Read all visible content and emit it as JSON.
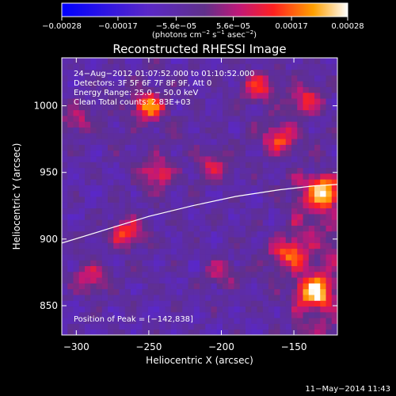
{
  "chart_data": {
    "type": "heatmap",
    "title": "Reconstructed RHESSI Image",
    "xlabel": "Heliocentric X (arcsec)",
    "ylabel": "Heliocentric Y (arcsec)",
    "xlim": [
      -310,
      -120
    ],
    "ylim": [
      828,
      1036
    ],
    "xticks": [
      -300,
      -250,
      -200,
      -150
    ],
    "yticks": [
      850,
      900,
      950,
      1000
    ],
    "xtick_labels": [
      "−300",
      "−250",
      "−200",
      "−150"
    ],
    "ytick_labels": [
      "850",
      "900",
      "950",
      "1000"
    ],
    "colorbar": {
      "range": [
        -0.00028,
        0.00028
      ],
      "ticks": [
        -0.00028,
        -0.00017,
        -5.6e-05,
        5.6e-05,
        0.00017,
        0.00028
      ],
      "tick_labels": [
        "−0.00028",
        "−0.00017",
        "−5.6e−05",
        "5.6e−05",
        "0.00017",
        "0.00028"
      ],
      "unit_label_prefix": "(photons cm",
      "unit_exp1": "−2",
      "unit_mid": " s",
      "unit_exp2": "−1",
      "unit_mid2": " asec",
      "unit_exp3": "−2",
      "unit_suffix": ")"
    },
    "limb_curve": [
      [
        -310,
        897
      ],
      [
        -280,
        907
      ],
      [
        -250,
        917
      ],
      [
        -220,
        925
      ],
      [
        -190,
        932
      ],
      [
        -160,
        937
      ],
      [
        -135,
        940
      ],
      [
        -120,
        941
      ]
    ],
    "hotspots": [
      {
        "x": -250,
        "y": 1000,
        "value": 0.00026
      },
      {
        "x": -245,
        "y": 950,
        "value": 0.00018
      },
      {
        "x": -265,
        "y": 905,
        "value": 0.0002
      },
      {
        "x": -290,
        "y": 870,
        "value": 0.00016
      },
      {
        "x": -175,
        "y": 1015,
        "value": 0.00018
      },
      {
        "x": -160,
        "y": 975,
        "value": 0.0002
      },
      {
        "x": -140,
        "y": 1005,
        "value": 0.00017
      },
      {
        "x": -130,
        "y": 935,
        "value": 0.00028
      },
      {
        "x": -135,
        "y": 860,
        "value": 0.00028
      },
      {
        "x": -155,
        "y": 890,
        "value": 0.00022
      },
      {
        "x": -205,
        "y": 955,
        "value": 0.00014
      },
      {
        "x": -200,
        "y": 875,
        "value": 0.00012
      },
      {
        "x": -300,
        "y": 990,
        "value": 0.00013
      }
    ]
  },
  "annotations": {
    "time_range": "24−Aug−2012 01:07:52.000 to 01:10:52.000",
    "detectors": "Detectors: 3F 5F 6F 7F 8F 9F, Att 0",
    "energy_range": "Energy Range: 25.0 − 50.0 keV",
    "method_counts": "Clean     Total counts: 2.83E+03",
    "peak_position": "Position of Peak = [−142,838]"
  },
  "footer": {
    "timestamp": "11−May−2014 11:43"
  }
}
